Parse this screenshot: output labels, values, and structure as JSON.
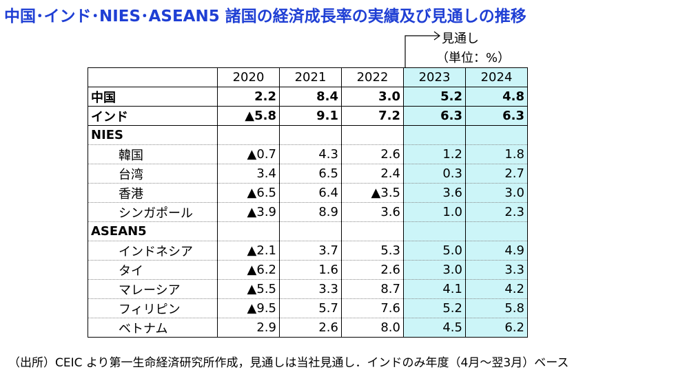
{
  "title": "中国･インド･NIES･ASEAN5 諸国の経済成長率の実績及び見通しの推移",
  "forecast_label": "見通し",
  "unit_label": "（単位：%）",
  "footnote": "（出所）CEIC より第一生命経済研究所作成，見通しは当社見通し．インドのみ年度（4月～翌3月）ベース",
  "chart_data": {
    "type": "table",
    "columns": [
      "2020",
      "2021",
      "2022",
      "2023",
      "2024"
    ],
    "rows": [
      {
        "label": "中国",
        "style": "bold",
        "values": [
          "2.2",
          "8.4",
          "3.0",
          "5.2",
          "4.8"
        ]
      },
      {
        "label": "インド",
        "style": "bold",
        "values": [
          "▲5.8",
          "9.1",
          "7.2",
          "6.3",
          "6.3"
        ]
      },
      {
        "label": "NIES",
        "style": "group",
        "values": [
          "",
          "",
          "",
          "",
          ""
        ]
      },
      {
        "label": "韓国",
        "style": "indent",
        "values": [
          "▲0.7",
          "4.3",
          "2.6",
          "1.2",
          "1.8"
        ]
      },
      {
        "label": "台湾",
        "style": "indent",
        "values": [
          "3.4",
          "6.5",
          "2.4",
          "0.3",
          "2.7"
        ]
      },
      {
        "label": "香港",
        "style": "indent",
        "values": [
          "▲6.5",
          "6.4",
          "▲3.5",
          "3.6",
          "3.0"
        ]
      },
      {
        "label": "シンガポール",
        "style": "indent",
        "values": [
          "▲3.9",
          "8.9",
          "3.6",
          "1.0",
          "2.3"
        ]
      },
      {
        "label": "ASEAN5",
        "style": "group",
        "values": [
          "",
          "",
          "",
          "",
          ""
        ]
      },
      {
        "label": "インドネシア",
        "style": "indent",
        "values": [
          "▲2.1",
          "3.7",
          "5.3",
          "5.0",
          "4.9"
        ]
      },
      {
        "label": "タイ",
        "style": "indent",
        "values": [
          "▲6.2",
          "1.6",
          "2.6",
          "3.0",
          "3.3"
        ]
      },
      {
        "label": "マレーシア",
        "style": "indent",
        "values": [
          "▲5.5",
          "3.3",
          "8.7",
          "4.1",
          "4.2"
        ]
      },
      {
        "label": "フィリピン",
        "style": "indent",
        "values": [
          "▲9.5",
          "5.7",
          "7.6",
          "5.2",
          "5.8"
        ]
      },
      {
        "label": "ベトナム",
        "style": "indent",
        "values": [
          "2.9",
          "2.6",
          "8.0",
          "4.5",
          "6.2"
        ]
      }
    ],
    "forecast_columns": [
      "2023",
      "2024"
    ],
    "forecast_color": "#ccf5f8",
    "title_color": "#1f3fd4"
  }
}
